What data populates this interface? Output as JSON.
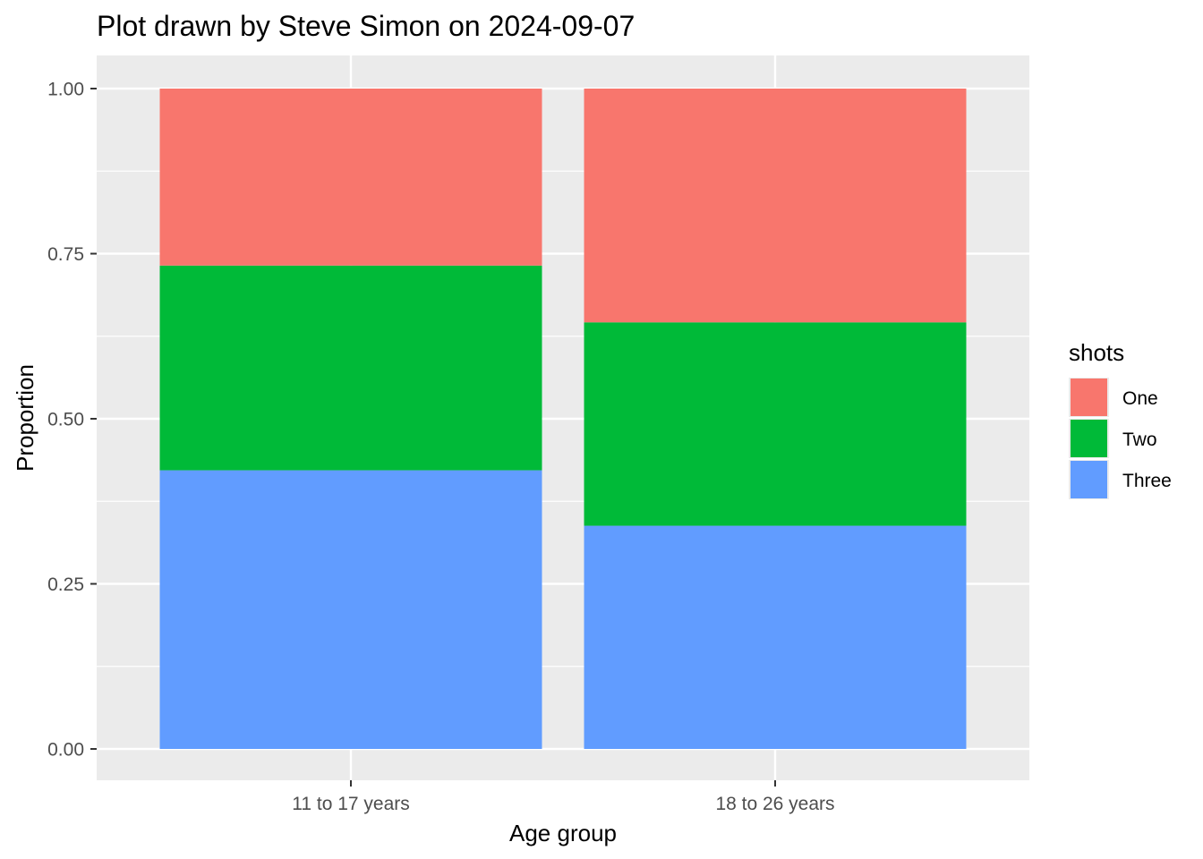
{
  "chart_data": {
    "type": "bar",
    "stacked": true,
    "title": "Plot drawn by Steve Simon on 2024-09-07",
    "xlabel": "Age group",
    "ylabel": "Proportion",
    "categories": [
      "11 to 17 years",
      "18 to 26 years"
    ],
    "ylim": [
      0,
      1
    ],
    "yticks": [
      "0.00",
      "0.25",
      "0.50",
      "0.75",
      "1.00"
    ],
    "grid": true,
    "legend": {
      "title": "shots",
      "position": "right",
      "entries": [
        "One",
        "Two",
        "Three"
      ]
    },
    "series": [
      {
        "name": "One",
        "color": "#F8766D",
        "values": [
          0.268,
          0.354
        ]
      },
      {
        "name": "Two",
        "color": "#00BA38",
        "values": [
          0.31,
          0.308
        ]
      },
      {
        "name": "Three",
        "color": "#619CFF",
        "values": [
          0.422,
          0.338
        ]
      }
    ],
    "panel_background": "#EBEBEB",
    "gridline_color": "#FFFFFF"
  }
}
